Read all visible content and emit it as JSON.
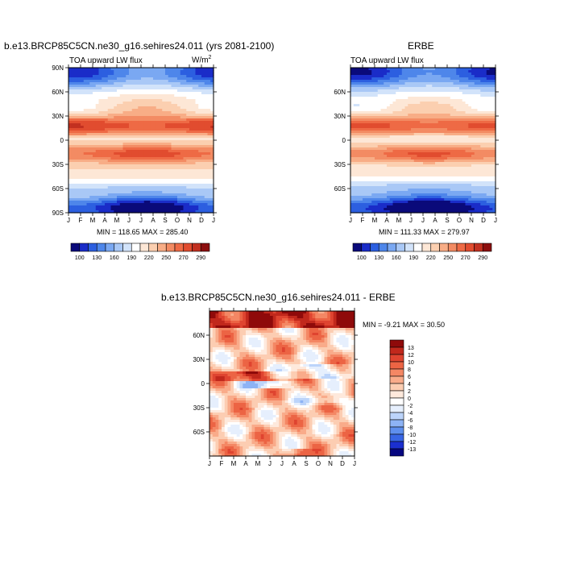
{
  "colors": {
    "scale": [
      "#0a0a7a",
      "#1a2cc8",
      "#2c5fe0",
      "#4e86ea",
      "#7aa8f2",
      "#a9c8f6",
      "#d2e3fa",
      "#ffffff",
      "#fde7d6",
      "#fbcfb0",
      "#f8ad86",
      "#f38b63",
      "#ee6a45",
      "#e14c2f",
      "#c23020",
      "#8c0e0e"
    ],
    "diff": [
      "#060680",
      "#1b2fcf",
      "#3866e5",
      "#5e8fee",
      "#8db3f5",
      "#bcd4fa",
      "#e6effd",
      "#ffffff",
      "#fee9dc",
      "#fccdb2",
      "#f9ab8a",
      "#f48764",
      "#ec6444",
      "#df4430",
      "#c1281c",
      "#8f0a0a"
    ]
  },
  "panels": {
    "model": {
      "title": "b.e13.BRCP85C5CN.ne30_g16.sehires24.011 (yrs 2081-2100)",
      "left_label": "TOA upward LW flux",
      "units_base": "W/m",
      "units_exp": "2",
      "minmax": "MIN = 118.65 MAX = 285.40"
    },
    "obs": {
      "title": "ERBE",
      "left_label": "TOA upward LW flux",
      "minmax": "MIN = 111.33 MAX = 279.97"
    },
    "diff": {
      "title": "b.e13.BRCP85C5CN.ne30_g16.sehires24.011 - ERBE",
      "minmax": "MIN =  -9.21 MAX =  30.50"
    }
  },
  "labelbar": {
    "ticks": [
      "100",
      "130",
      "160",
      "190",
      "220",
      "250",
      "270",
      "290"
    ]
  },
  "diff_labelbar": {
    "ticks": [
      "13",
      "12",
      "10",
      "8",
      "6",
      "4",
      "2",
      "0",
      "-2",
      "-4",
      "-6",
      "-8",
      "-10",
      "-12",
      "-13"
    ]
  },
  "chart_data": [
    {
      "type": "heatmap",
      "title": "TOA upward LW flux",
      "x": [
        "J",
        "F",
        "M",
        "A",
        "M",
        "J",
        "J",
        "A",
        "S",
        "O",
        "N",
        "D",
        "J"
      ],
      "y_ticks_top_left": [
        "90N",
        "60N",
        "30N",
        "0",
        "30S",
        "60S",
        "90S"
      ],
      "ylim": [
        -90,
        90
      ],
      "contour_levels": [
        100,
        130,
        160,
        190,
        220,
        250,
        270,
        290
      ],
      "min": 118.65,
      "max": 285.4
    },
    {
      "type": "heatmap",
      "title": "ERBE",
      "x": [
        "J",
        "F",
        "M",
        "A",
        "M",
        "J",
        "J",
        "A",
        "S",
        "O",
        "N",
        "D",
        "J"
      ],
      "y_ticks_top_right": [
        "60N",
        "30N",
        "0",
        "30S",
        "60S"
      ],
      "ylim": [
        -90,
        90
      ],
      "contour_levels": [
        100,
        130,
        160,
        190,
        220,
        250,
        270,
        290
      ],
      "min": 111.33,
      "max": 279.97
    },
    {
      "type": "heatmap",
      "title": "b.e13.BRCP85C5CN.ne30_g16.sehires24.011 - ERBE",
      "x": [
        "J",
        "F",
        "M",
        "A",
        "M",
        "J",
        "J",
        "A",
        "S",
        "O",
        "N",
        "D",
        "J"
      ],
      "y_ticks_bottom": [
        "60N",
        "30N",
        "0",
        "30S",
        "60S"
      ],
      "ylim": [
        -90,
        90
      ],
      "contour_levels": [
        -13,
        -12,
        -10,
        -8,
        -6,
        -4,
        -2,
        0,
        2,
        4,
        6,
        8,
        10,
        12,
        13
      ],
      "min": -9.21,
      "max": 30.5
    }
  ]
}
